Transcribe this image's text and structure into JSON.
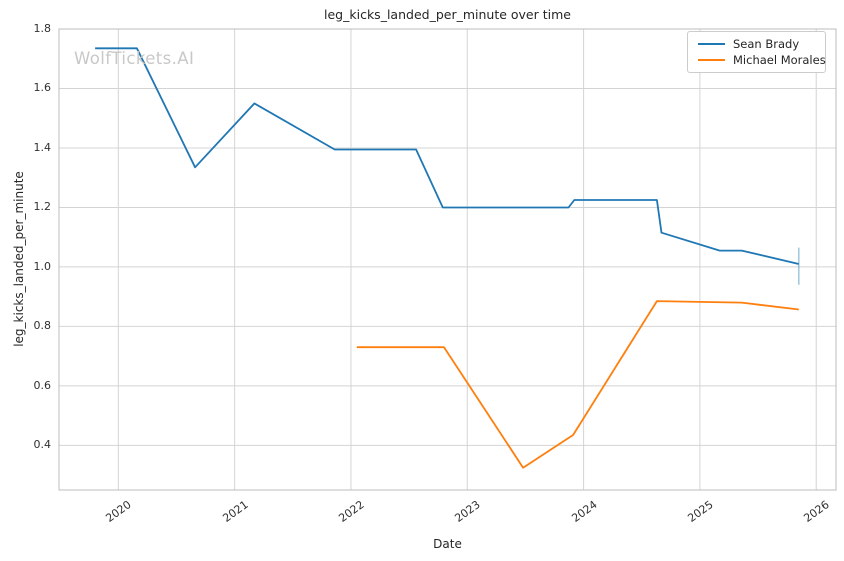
{
  "figure": {
    "watermark": "WolfTickets.AI"
  },
  "chart_data": {
    "type": "line",
    "title": "leg_kicks_landed_per_minute over time",
    "xlabel": "Date",
    "ylabel": "leg_kicks_landed_per_minute",
    "xlim": [
      2019.49,
      2026.17
    ],
    "ylim": [
      0.25,
      1.8
    ],
    "x_ticks": [
      2020,
      2021,
      2022,
      2023,
      2024,
      2025,
      2026
    ],
    "y_ticks": [
      0.4,
      0.6,
      0.8,
      1.0,
      1.2,
      1.4,
      1.6,
      1.8
    ],
    "grid": true,
    "legend_position": "upper right",
    "background": "#ffffff",
    "grid_color": "#d4d4d4",
    "spine_color": "#bcbcbc",
    "series": [
      {
        "name": "Sean Brady",
        "color": "#1f77b4",
        "points": [
          [
            2019.8,
            1.735
          ],
          [
            2020.16,
            1.735
          ],
          [
            2020.66,
            1.335
          ],
          [
            2021.17,
            1.55
          ],
          [
            2021.86,
            1.395
          ],
          [
            2022.56,
            1.395
          ],
          [
            2022.79,
            1.2
          ],
          [
            2023.87,
            1.2
          ],
          [
            2023.92,
            1.225
          ],
          [
            2024.63,
            1.225
          ],
          [
            2024.67,
            1.115
          ],
          [
            2025.17,
            1.055
          ],
          [
            2025.36,
            1.055
          ],
          [
            2025.85,
            1.01
          ]
        ]
      },
      {
        "name": "Michael Morales",
        "color": "#ff7f0e",
        "points": [
          [
            2022.05,
            0.73
          ],
          [
            2022.8,
            0.73
          ],
          [
            2023.48,
            0.325
          ],
          [
            2023.87,
            0.425
          ],
          [
            2023.91,
            0.435
          ],
          [
            2024.63,
            0.885
          ],
          [
            2025.36,
            0.88
          ],
          [
            2025.85,
            0.857
          ]
        ]
      }
    ],
    "error_bars": [
      {
        "series": "Sean Brady",
        "x": 2025.85,
        "y_low": 0.94,
        "y_high": 1.065,
        "color": "rgba(31,119,180,0.4)"
      }
    ]
  }
}
